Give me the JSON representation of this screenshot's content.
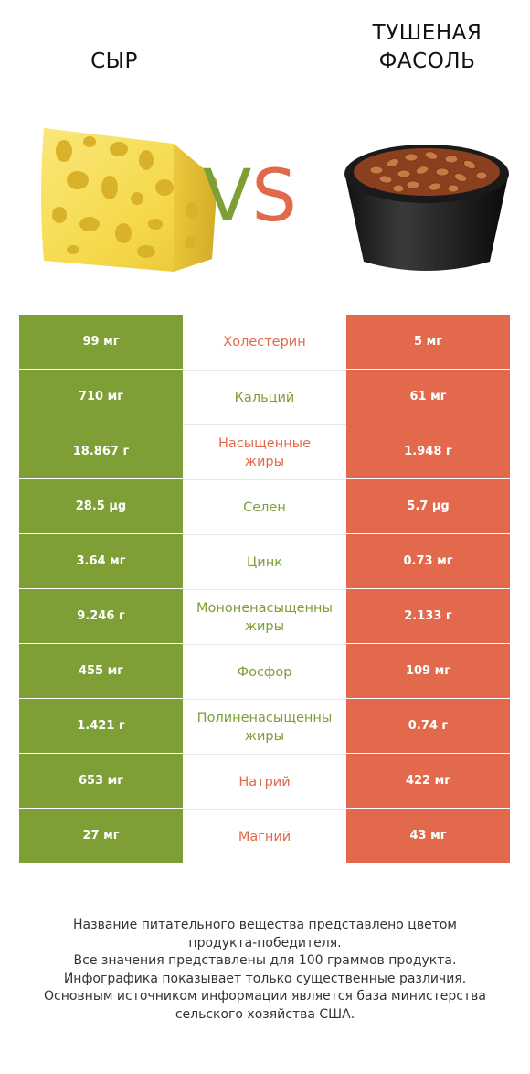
{
  "colors": {
    "left": "#7d9f36",
    "right": "#e3694c"
  },
  "left_food": {
    "name": "СЫР",
    "image": "cheese-wedge"
  },
  "right_food": {
    "name": "ТУШЕНАЯ\nФАСОЛЬ",
    "image": "baked-beans-bowl"
  },
  "vs": {
    "v": "V",
    "s": "S"
  },
  "rows": [
    {
      "left": "99 мг",
      "label": "Холестерин",
      "right": "5 мг",
      "winner": "right"
    },
    {
      "left": "710 мг",
      "label": "Кальций",
      "right": "61 мг",
      "winner": "left"
    },
    {
      "left": "18.867 г",
      "label": "Насыщенные\nжиры",
      "right": "1.948 г",
      "winner": "right"
    },
    {
      "left": "28.5 µg",
      "label": "Селен",
      "right": "5.7 µg",
      "winner": "left"
    },
    {
      "left": "3.64 мг",
      "label": "Цинк",
      "right": "0.73 мг",
      "winner": "left"
    },
    {
      "left": "9.246 г",
      "label": "Мононенасыщенны\nжиры",
      "right": "2.133 г",
      "winner": "left"
    },
    {
      "left": "455 мг",
      "label": "Фосфор",
      "right": "109 мг",
      "winner": "left"
    },
    {
      "left": "1.421 г",
      "label": "Полиненасыщенны\nжиры",
      "right": "0.74 г",
      "winner": "left"
    },
    {
      "left": "653 мг",
      "label": "Натрий",
      "right": "422 мг",
      "winner": "right"
    },
    {
      "left": "27 мг",
      "label": "Магний",
      "right": "43 мг",
      "winner": "right"
    }
  ],
  "footer": [
    "Название питательного вещества представлено цветом",
    "продукта-победителя.",
    "Все значения представлены для 100 граммов продукта.",
    "Инфографика показывает только существенные различия.",
    "Основным источником информации является база министерства",
    "сельского хозяйства США."
  ]
}
